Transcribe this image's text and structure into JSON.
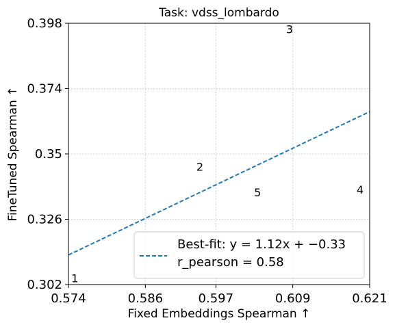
{
  "chart_data": {
    "type": "scatter",
    "title": "Task: vdss_lombardo",
    "xlabel": "Fixed Embeddings Spearman ↑",
    "ylabel": "FineTuned Spearman ↑",
    "xlim": [
      0.574,
      0.621
    ],
    "ylim": [
      0.302,
      0.398
    ],
    "xticks": [
      0.574,
      0.586,
      0.597,
      0.609,
      0.621
    ],
    "xtick_labels": [
      "0.574",
      "0.586",
      "0.597",
      "0.609",
      "0.621"
    ],
    "yticks": [
      0.302,
      0.326,
      0.35,
      0.374,
      0.398
    ],
    "ytick_labels": [
      "0.302",
      "0.326",
      "0.35",
      "0.374",
      "0.398"
    ],
    "grid": true,
    "points": [
      {
        "label": "1",
        "x": 0.575,
        "y": 0.304
      },
      {
        "label": "2",
        "x": 0.5945,
        "y": 0.345
      },
      {
        "label": "3",
        "x": 0.6085,
        "y": 0.3955
      },
      {
        "label": "4",
        "x": 0.6195,
        "y": 0.3365
      },
      {
        "label": "5",
        "x": 0.6035,
        "y": 0.3355
      }
    ],
    "fit_line": {
      "slope": 1.12,
      "intercept": -0.33,
      "color": "#1f77b4",
      "style": "dashed"
    },
    "legend": {
      "placement": "lower-right",
      "fit_label": "Best-fit: y = 1.12x + −0.33",
      "r_label": "r_pearson = 0.58"
    }
  }
}
